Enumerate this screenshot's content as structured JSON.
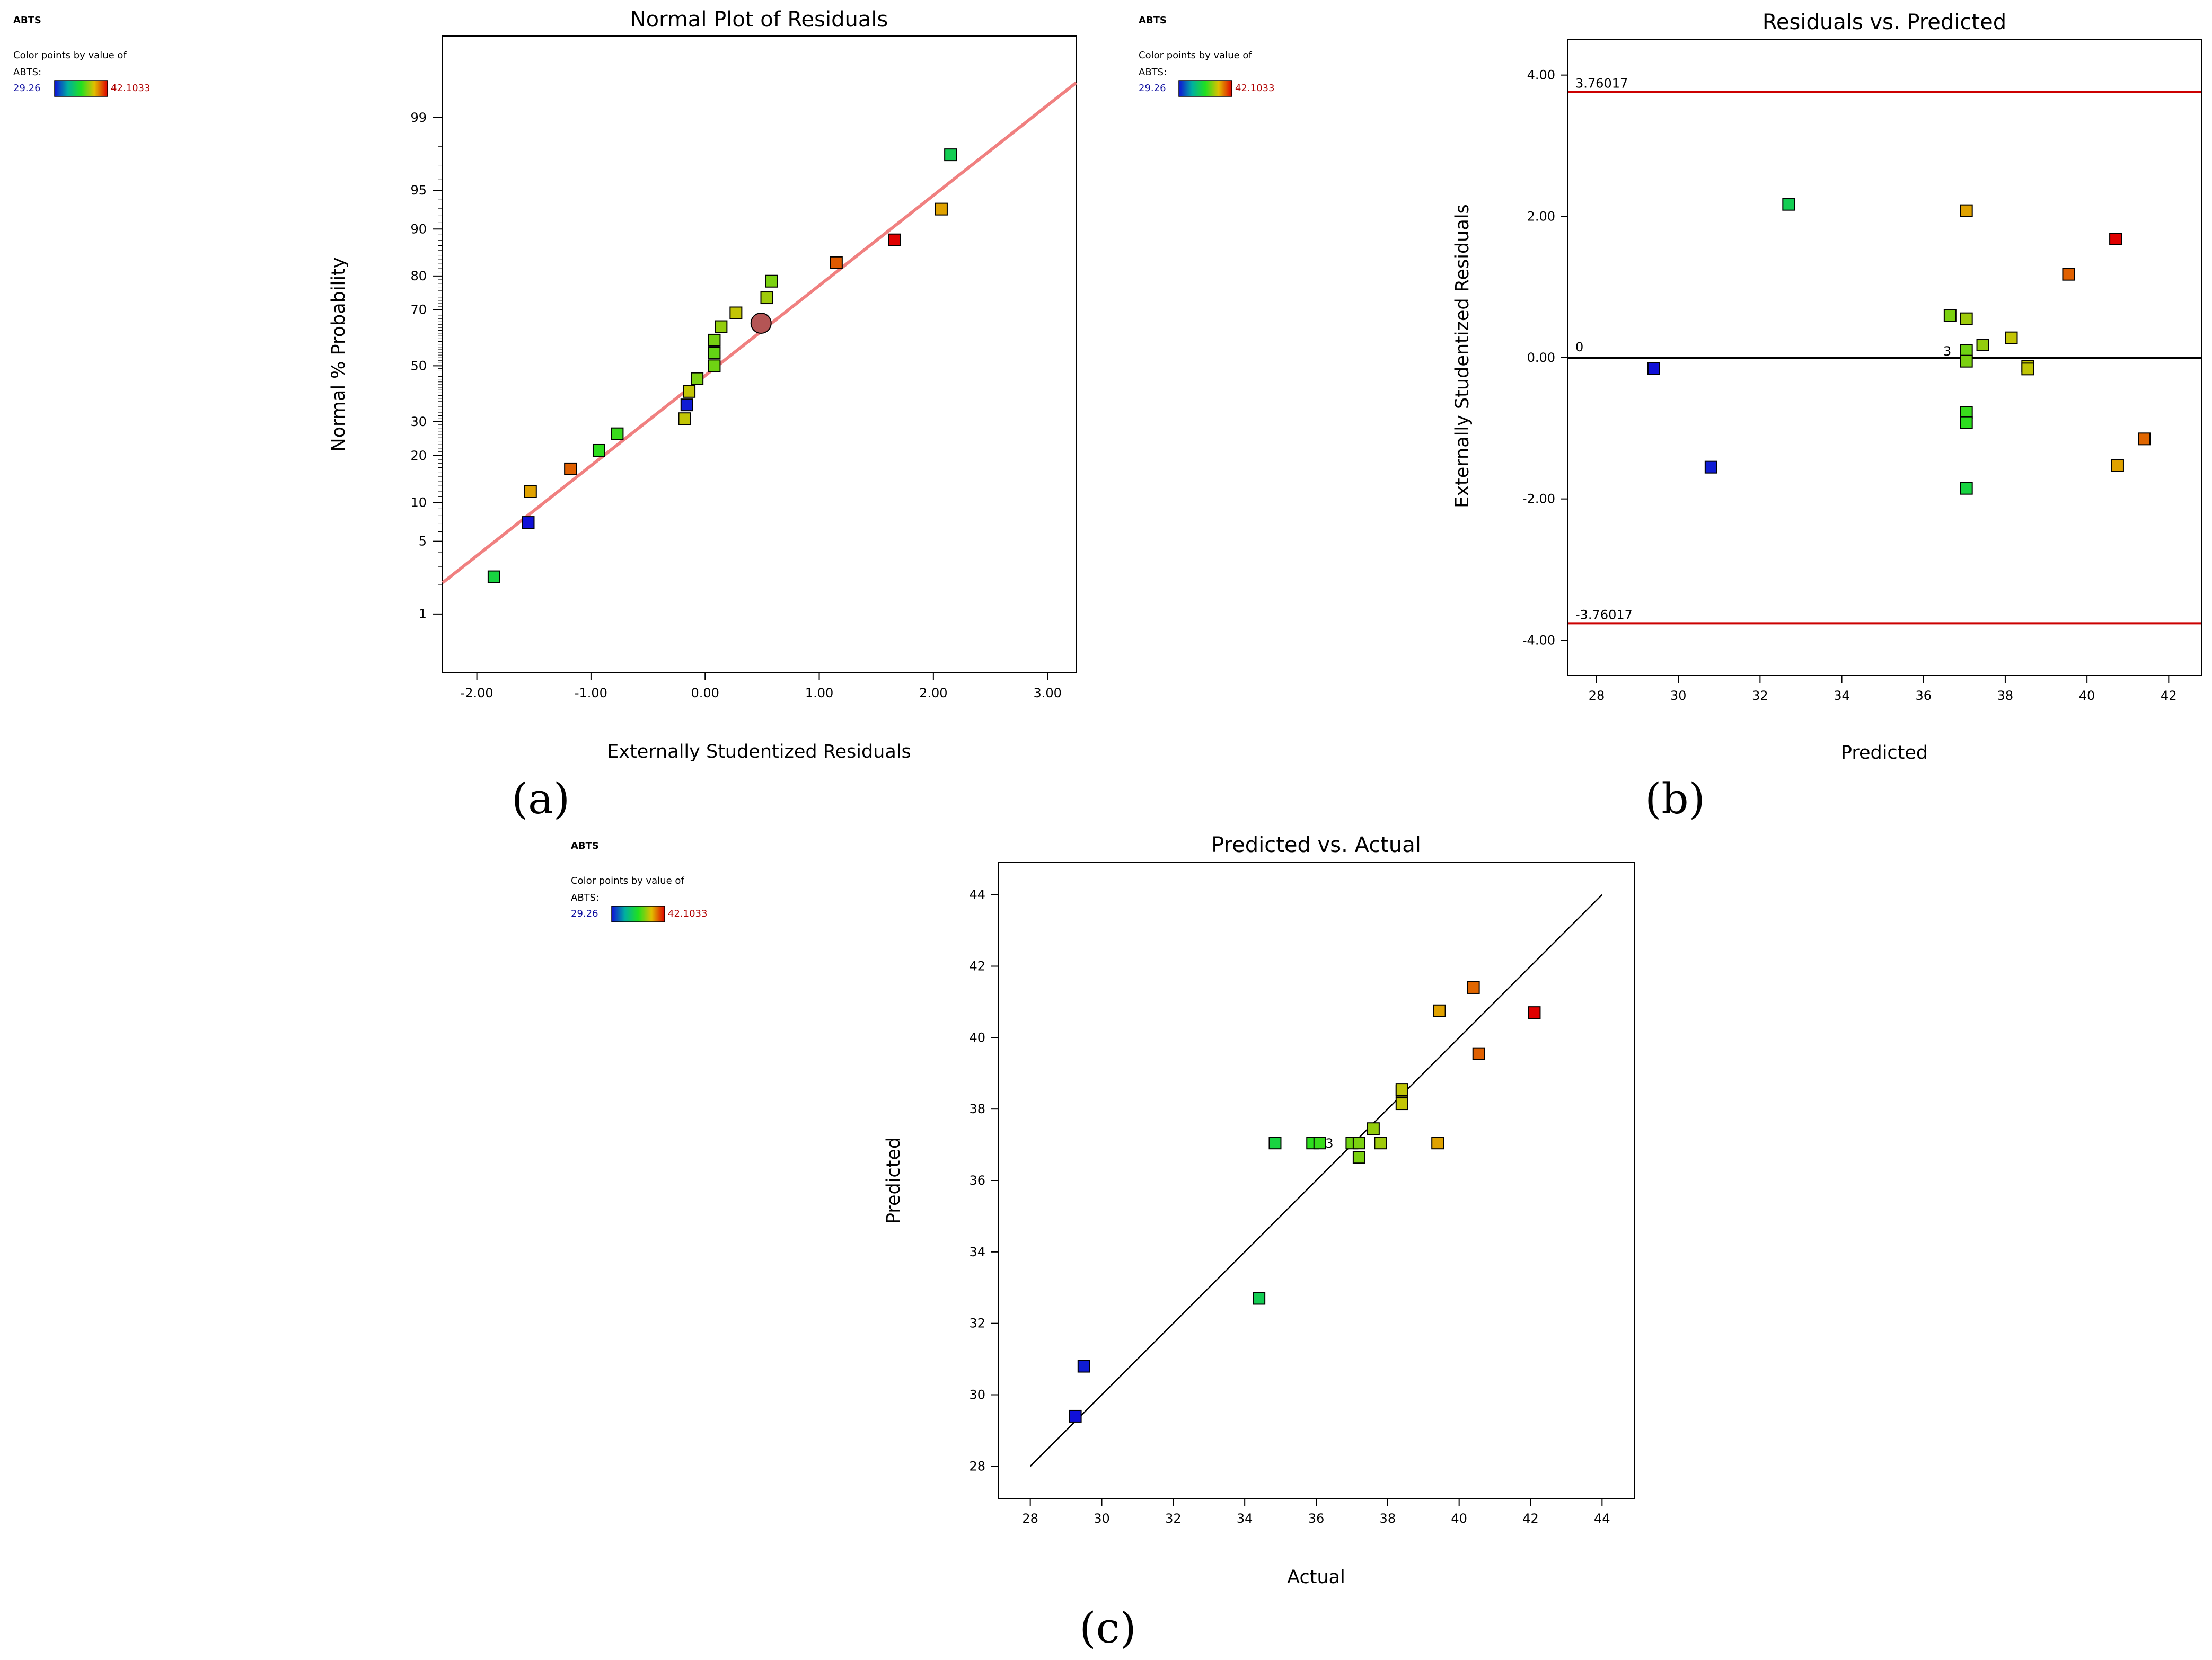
{
  "legend": {
    "title": "ABTS",
    "line1": "Color points by value of",
    "line2": "ABTS:",
    "min_label": "29.26",
    "max_label": "42.1033",
    "min_value": 29.26,
    "max_value": 42.1033
  },
  "colors": {
    "fit_line": "#f08080",
    "limit_line": "#cc0000",
    "zero_line": "#000000",
    "low": "#1010d8",
    "high": "#e00000",
    "center_marker": "#b45555"
  },
  "panel_labels": {
    "a": "(a)",
    "b": "(b)",
    "c": "(c)"
  },
  "chart_data": [
    {
      "type": "scatter",
      "title": "Normal Plot of Residuals",
      "xlabel": "Externally Studentized Residuals",
      "ylabel": "Normal % Probability",
      "xlim": [
        -2.3,
        3.25
      ],
      "x_ticks": [
        -2,
        -1,
        0,
        1,
        2,
        3
      ],
      "x_tick_labels": [
        "-2.00",
        "-1.00",
        "0.00",
        "1.00",
        "2.00",
        "3.00"
      ],
      "y_scale": "normal-probability",
      "ylim": [
        0.2,
        99.9
      ],
      "y_ticks": [
        1,
        5,
        10,
        20,
        30,
        50,
        70,
        80,
        90,
        95,
        99
      ],
      "y_tick_labels": [
        "1",
        "5",
        "10",
        "20",
        "30",
        "50",
        "70",
        "80",
        "90",
        "95",
        "99"
      ],
      "fit_line": {
        "x": [
          -2.3,
          3.25
        ],
        "y": [
          2.1,
          99.6
        ]
      },
      "highlight_point": {
        "x": 0.49,
        "y": 65.5
      },
      "points": [
        {
          "x": -1.85,
          "y": 2.4,
          "abts": 34.85
        },
        {
          "x": -1.55,
          "y": 7.1,
          "abts": 29.26
        },
        {
          "x": -1.53,
          "y": 11.9,
          "abts": 39.4
        },
        {
          "x": -1.18,
          "y": 16.7,
          "abts": 40.5
        },
        {
          "x": -0.93,
          "y": 21.4,
          "abts": 35.9
        },
        {
          "x": -0.77,
          "y": 26.2,
          "abts": 36.1
        },
        {
          "x": -0.18,
          "y": 31.0,
          "abts": 38.4
        },
        {
          "x": -0.16,
          "y": 35.7,
          "abts": 29.5
        },
        {
          "x": -0.14,
          "y": 40.5,
          "abts": 38.4
        },
        {
          "x": -0.07,
          "y": 45.2,
          "abts": 37.2
        },
        {
          "x": 0.08,
          "y": 50.0,
          "abts": 37.0
        },
        {
          "x": 0.08,
          "y": 54.8,
          "abts": 36.8
        },
        {
          "x": 0.08,
          "y": 59.5,
          "abts": 37.1
        },
        {
          "x": 0.14,
          "y": 64.3,
          "abts": 37.6
        },
        {
          "x": 0.27,
          "y": 69.0,
          "abts": 38.4
        },
        {
          "x": 0.54,
          "y": 73.8,
          "abts": 37.8
        },
        {
          "x": 0.58,
          "y": 78.6,
          "abts": 37.2
        },
        {
          "x": 1.15,
          "y": 83.3,
          "abts": 40.6
        },
        {
          "x": 1.66,
          "y": 88.1,
          "abts": 42.1033
        },
        {
          "x": 2.07,
          "y": 92.9,
          "abts": 39.4
        },
        {
          "x": 2.15,
          "y": 97.6,
          "abts": 34.4
        }
      ]
    },
    {
      "type": "scatter",
      "title": "Residuals vs. Predicted",
      "xlabel": "Predicted",
      "ylabel": "Externally Studentized Residuals",
      "xlim": [
        27.3,
        42.8
      ],
      "x_ticks": [
        28,
        30,
        32,
        34,
        36,
        38,
        40,
        42
      ],
      "x_tick_labels": [
        "28",
        "30",
        "32",
        "34",
        "36",
        "38",
        "40",
        "42"
      ],
      "ylim": [
        -4.5,
        4.5
      ],
      "y_ticks": [
        -4,
        -2,
        0,
        2,
        4
      ],
      "y_tick_labels": [
        "-4.00",
        "-2.00",
        "0.00",
        "2.00",
        "4.00"
      ],
      "upper_limit": 3.76017,
      "lower_limit": -3.76017,
      "upper_label": "3.76017",
      "lower_label": "-3.76017",
      "zero_label": "0",
      "annotation": {
        "text": "3",
        "x": 36.95,
        "y": 0.0
      },
      "points": [
        {
          "x": 29.4,
          "y": -0.15,
          "abts": 29.26
        },
        {
          "x": 30.8,
          "y": -1.55,
          "abts": 29.5
        },
        {
          "x": 32.7,
          "y": 2.17,
          "abts": 34.4
        },
        {
          "x": 36.65,
          "y": 0.6,
          "abts": 37.2
        },
        {
          "x": 37.05,
          "y": 2.08,
          "abts": 39.4
        },
        {
          "x": 37.05,
          "y": 0.55,
          "abts": 37.8
        },
        {
          "x": 37.05,
          "y": 0.1,
          "abts": 37.0
        },
        {
          "x": 37.05,
          "y": -0.05,
          "abts": 37.2
        },
        {
          "x": 37.05,
          "y": -0.78,
          "abts": 36.1
        },
        {
          "x": 37.05,
          "y": -0.92,
          "abts": 35.9
        },
        {
          "x": 37.05,
          "y": -1.85,
          "abts": 34.85
        },
        {
          "x": 37.45,
          "y": 0.18,
          "abts": 37.6
        },
        {
          "x": 38.15,
          "y": 0.28,
          "abts": 38.4
        },
        {
          "x": 38.55,
          "y": -0.12,
          "abts": 38.4
        },
        {
          "x": 38.55,
          "y": -0.16,
          "abts": 38.35
        },
        {
          "x": 39.55,
          "y": 1.18,
          "abts": 40.5
        },
        {
          "x": 40.7,
          "y": 1.68,
          "abts": 42.1033
        },
        {
          "x": 40.75,
          "y": -1.53,
          "abts": 39.4
        },
        {
          "x": 41.4,
          "y": -1.15,
          "abts": 40.4
        }
      ]
    },
    {
      "type": "scatter",
      "title": "Predicted vs. Actual",
      "xlabel": "Actual",
      "ylabel": "Predicted",
      "xlim": [
        27.1,
        44.9
      ],
      "x_ticks": [
        28,
        30,
        32,
        34,
        36,
        38,
        40,
        42,
        44
      ],
      "x_tick_labels": [
        "28",
        "30",
        "32",
        "34",
        "36",
        "38",
        "40",
        "42",
        "44"
      ],
      "ylim": [
        27.1,
        44.9
      ],
      "y_ticks": [
        28,
        30,
        32,
        34,
        36,
        38,
        40,
        42,
        44
      ],
      "y_tick_labels": [
        "28",
        "30",
        "32",
        "34",
        "36",
        "38",
        "40",
        "42",
        "44"
      ],
      "diagonal": [
        28,
        44
      ],
      "annotation": {
        "text": "3",
        "x": 36.85,
        "y": 37.05
      },
      "points": [
        {
          "x": 29.26,
          "y": 29.4,
          "abts": 29.26
        },
        {
          "x": 29.5,
          "y": 30.8,
          "abts": 29.5
        },
        {
          "x": 34.4,
          "y": 32.7,
          "abts": 34.4
        },
        {
          "x": 34.85,
          "y": 37.05,
          "abts": 34.85
        },
        {
          "x": 35.9,
          "y": 37.05,
          "abts": 35.9
        },
        {
          "x": 36.1,
          "y": 37.05,
          "abts": 36.1
        },
        {
          "x": 37.0,
          "y": 37.05,
          "abts": 37.0
        },
        {
          "x": 37.2,
          "y": 37.05,
          "abts": 37.2
        },
        {
          "x": 37.2,
          "y": 36.65,
          "abts": 37.2
        },
        {
          "x": 37.6,
          "y": 37.45,
          "abts": 37.6
        },
        {
          "x": 37.8,
          "y": 37.05,
          "abts": 37.8
        },
        {
          "x": 38.4,
          "y": 38.15,
          "abts": 38.4
        },
        {
          "x": 38.4,
          "y": 38.5,
          "abts": 38.4
        },
        {
          "x": 38.4,
          "y": 38.55,
          "abts": 38.35
        },
        {
          "x": 39.4,
          "y": 37.05,
          "abts": 39.4
        },
        {
          "x": 39.45,
          "y": 40.75,
          "abts": 39.4
        },
        {
          "x": 40.4,
          "y": 41.4,
          "abts": 40.4
        },
        {
          "x": 40.55,
          "y": 39.55,
          "abts": 40.5
        },
        {
          "x": 42.1033,
          "y": 40.7,
          "abts": 42.1033
        }
      ]
    }
  ]
}
